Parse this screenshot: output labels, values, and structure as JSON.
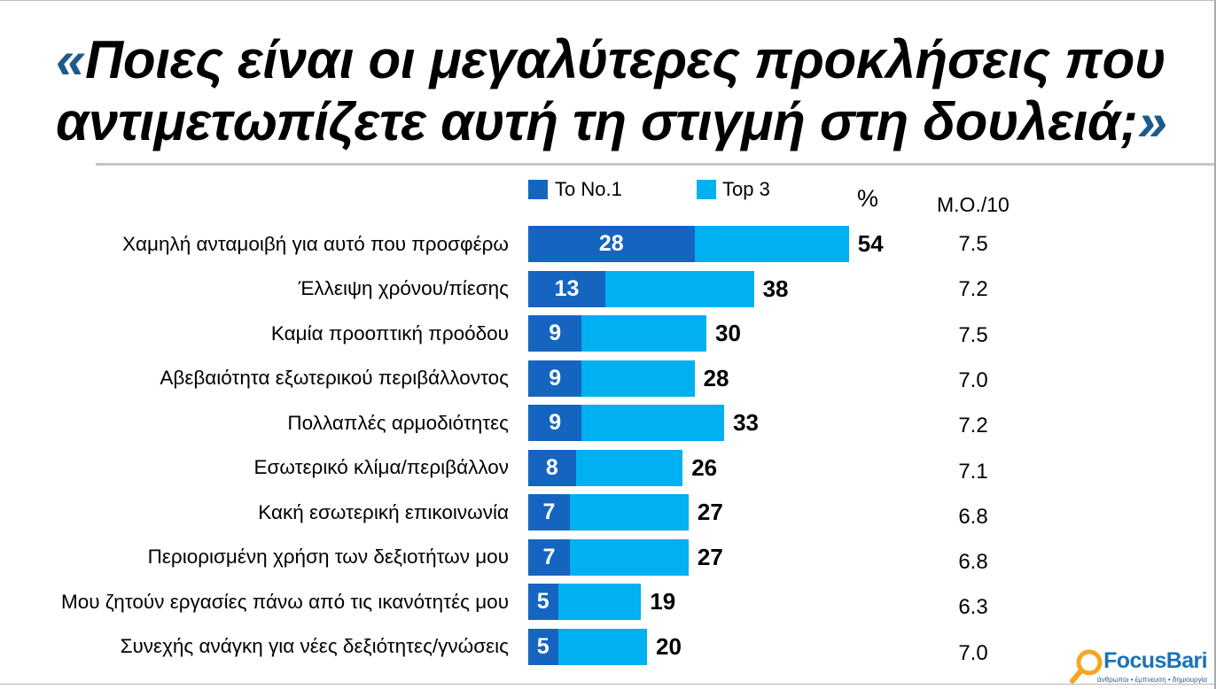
{
  "chart_data": {
    "type": "bar",
    "orientation": "horizontal",
    "legend_position": "top",
    "grid": false,
    "title": {
      "open_quote": "«",
      "line1": "Ποιες είναι οι μεγαλύτερες προκλήσεις που",
      "line2": "αντιμετωπίζετε αυτή τη στιγμή στη δουλειά;",
      "close_quote": "»"
    },
    "categories": [
      "Χαμηλή ανταμοιβή για αυτό που προσφέρω",
      "Έλλειψη χρόνου/πίεσης",
      "Καμία προοπτική προόδου",
      "Αβεβαιότητα εξωτερικού περιβάλλοντος",
      "Πολλαπλές αρμοδιότητες",
      "Εσωτερικό κλίμα/περιβάλλον",
      "Κακή εσωτερική επικοινωνία",
      "Περιορισμένη χρήση των δεξιοτήτων μου",
      "Μου ζητούν εργασίες πάνω από τις ικανότητές μου",
      "Συνεχής ανάγκη για νέες δεξιότητες/γνώσεις"
    ],
    "series": [
      {
        "name": "Το Νο.1",
        "color": "#1565c0",
        "values": [
          28,
          13,
          9,
          9,
          9,
          8,
          7,
          7,
          5,
          5
        ]
      },
      {
        "name": "Top 3",
        "color": "#00b0f0",
        "values": [
          54,
          38,
          30,
          28,
          33,
          26,
          27,
          27,
          19,
          20
        ]
      }
    ],
    "percent_label": "%",
    "mean_header": "Μ.Ο./10",
    "mean_values": [
      "7.5",
      "7.2",
      "7.5",
      "7.0",
      "7.2",
      "7.1",
      "6.8",
      "6.8",
      "6.3",
      "7.0"
    ]
  },
  "colors": {
    "title_quote": "#1e5b8c",
    "divider": "#c6c6c6"
  },
  "logo": {
    "name": "FocusBari",
    "tagline": "άνθρωποι • έμπνευση • δημιουργία",
    "icon": "magnifier-icon",
    "color": "#1b72b8",
    "icon_color": "#f5a623"
  }
}
